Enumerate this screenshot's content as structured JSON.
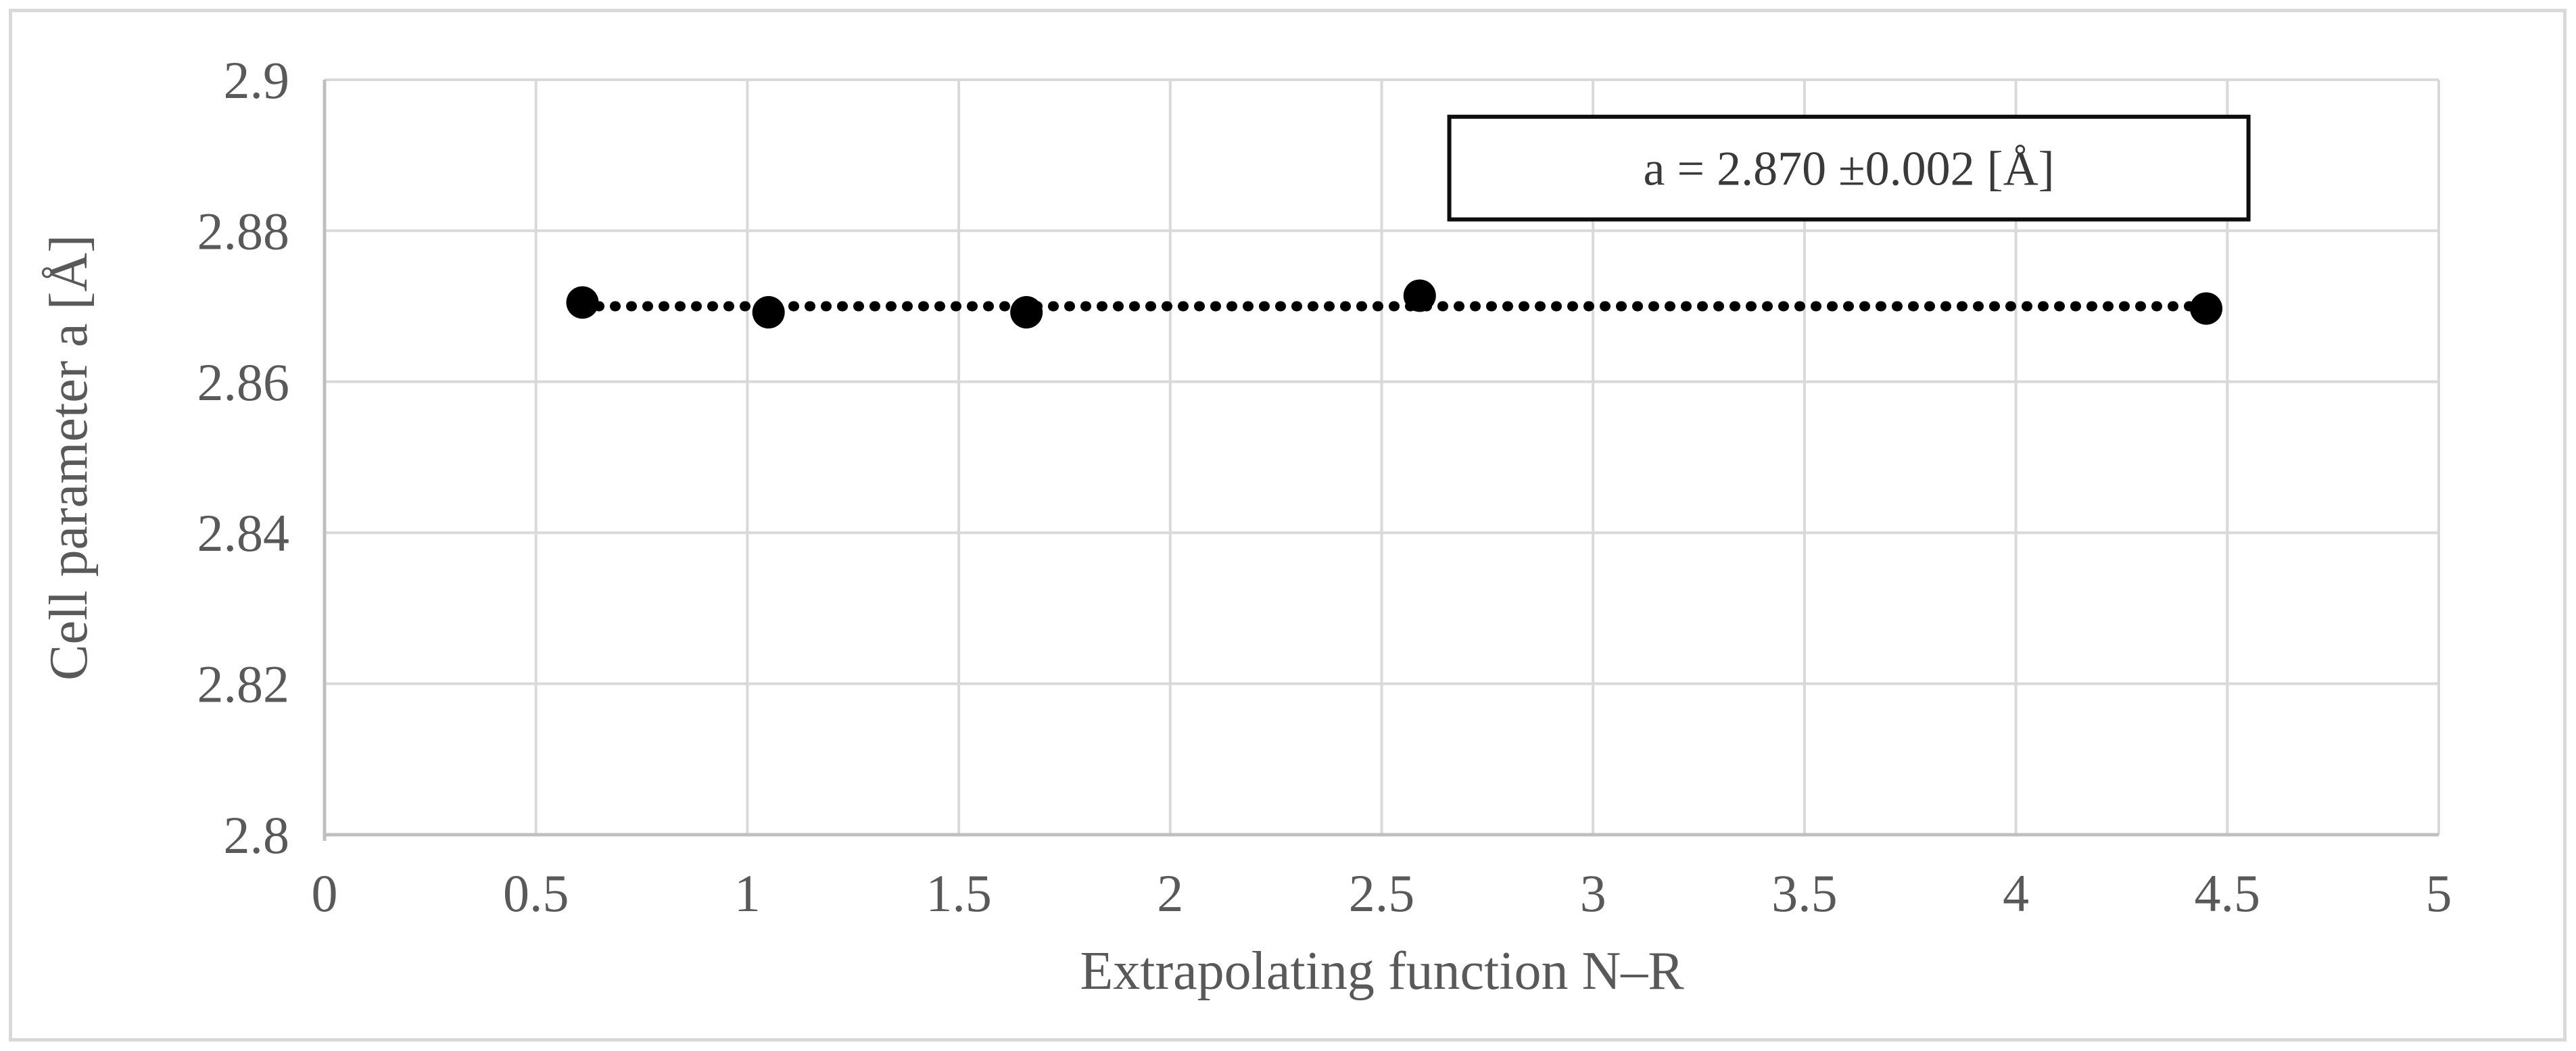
{
  "chart_data": {
    "type": "scatter",
    "title": "",
    "xlabel": "Extrapolating function N–R",
    "ylabel": "Cell parameter a [Å]",
    "xlim": [
      0,
      5
    ],
    "ylim": [
      2.8,
      2.9
    ],
    "x_ticks": [
      0,
      0.5,
      1,
      1.5,
      2,
      2.5,
      3,
      3.5,
      4,
      4.5,
      5
    ],
    "x_tick_labels": [
      "0",
      "0.5",
      "1",
      "1.5",
      "2",
      "2.5",
      "3",
      "3.5",
      "4",
      "4.5",
      "5"
    ],
    "y_ticks": [
      2.8,
      2.82,
      2.84,
      2.86,
      2.88,
      2.9
    ],
    "y_tick_labels": [
      "2.8",
      "2.82",
      "2.84",
      "2.86",
      "2.88",
      "2.9"
    ],
    "grid": true,
    "legend": "none",
    "series": [
      {
        "name": "cell parameter a",
        "marker": "circle",
        "color": "#000000",
        "points": [
          {
            "x": 0.61,
            "y": 2.8705
          },
          {
            "x": 1.05,
            "y": 2.8692
          },
          {
            "x": 1.66,
            "y": 2.8692
          },
          {
            "x": 2.59,
            "y": 2.8714
          },
          {
            "x": 4.45,
            "y": 2.8697
          }
        ]
      }
    ],
    "trendline": {
      "style": "dotted",
      "color": "#000000",
      "y": 2.87,
      "x_start": 0.61,
      "x_end": 4.45
    },
    "annotation": {
      "text": "a = 2.870 ±0.002 [Å]",
      "x_range": [
        2.66,
        4.55
      ],
      "y_range": [
        2.8815,
        2.8951
      ],
      "border_color": "#0d0d0d",
      "background": "#ffffff"
    }
  },
  "colors": {
    "gridline": "#D9D9D9",
    "axis_line": "#BFBFBF",
    "tick_text": "#595959",
    "marker": "#000000",
    "frame_border": "#D9D9D9",
    "annotation_text": "#3a3a3a"
  }
}
